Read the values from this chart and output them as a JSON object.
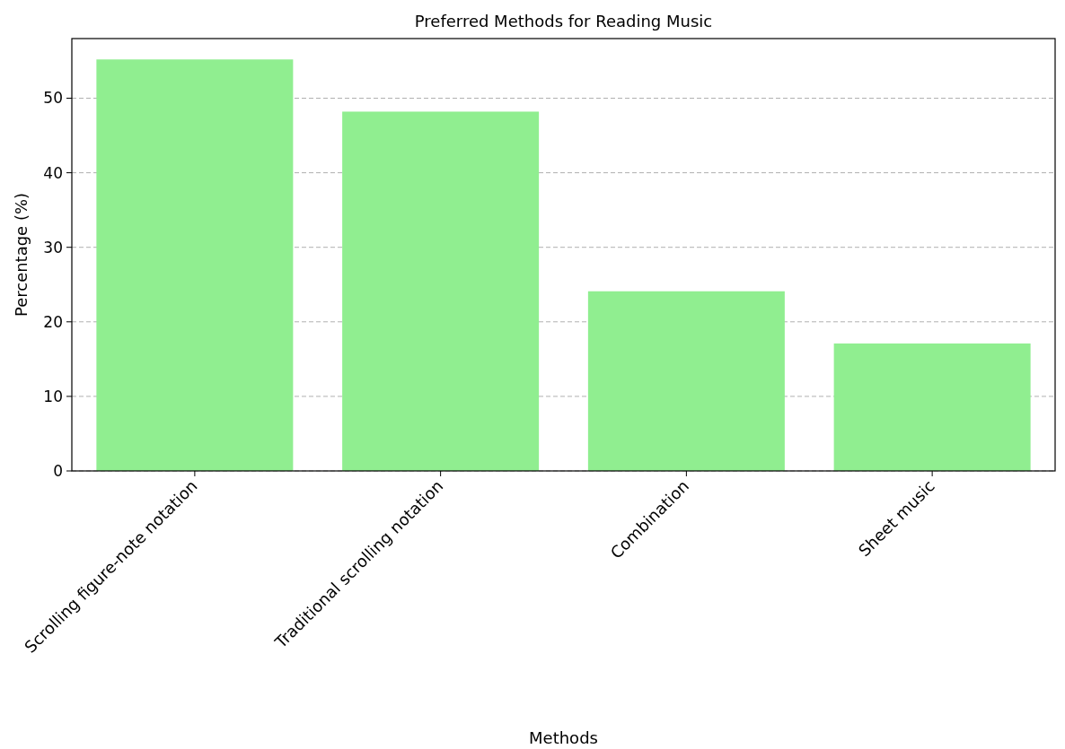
{
  "chart_data": {
    "type": "bar",
    "title": "Preferred Methods for Reading Music",
    "xlabel": "Methods",
    "ylabel": "Percentage (%)",
    "categories": [
      "Scrolling figure-note notation",
      "Traditional scrolling notation",
      "Combination",
      "Sheet music"
    ],
    "values": [
      55.2,
      48.2,
      24.1,
      17.1
    ],
    "color": "#90ee90",
    "ylim": [
      0,
      58
    ],
    "yticks": [
      0,
      10,
      20,
      30,
      40,
      50
    ],
    "grid": "y"
  }
}
